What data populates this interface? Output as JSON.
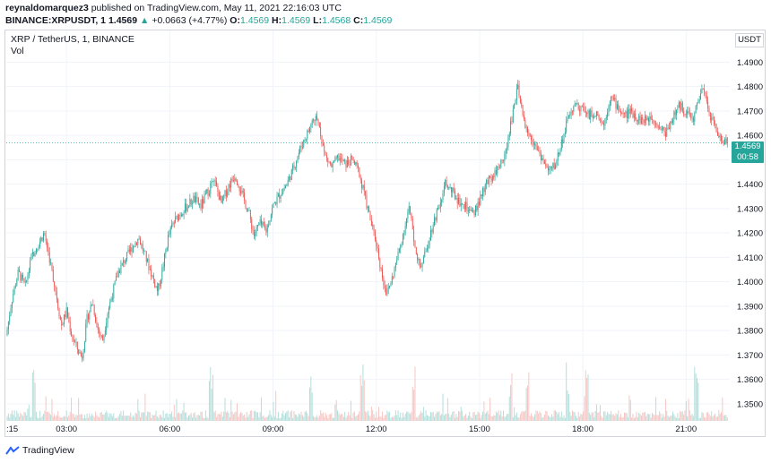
{
  "header": {
    "publisher": "reynaldomarquez3",
    "published_text": " published on TradingView.com, May 11, 2021 22:16:03 UTC",
    "symbol_line": "BINANCE:XRPUSDT, 1",
    "last": "1.4569",
    "arrow": "▲",
    "change": "+0.0663 (+4.77%)",
    "o_label": "O:",
    "o": "1.4569",
    "h_label": "H:",
    "h": "1.4569",
    "l_label": "L:",
    "l": "1.4568",
    "c_label": "C:",
    "c": "1.4569"
  },
  "legend": {
    "title": "XRP / TetherUS, 1, BINANCE",
    "vol": "Vol"
  },
  "currency": "USDT",
  "price_tag": {
    "price": "1.4569",
    "countdown": "00:58"
  },
  "footer": {
    "brand": "TradingView",
    "logo_icon": "tradingview-logo-icon"
  },
  "colors": {
    "up": "#26a69a",
    "down": "#ef5350",
    "vol_up": "#b2dfdb",
    "vol_down": "#f6c6c4",
    "grid": "#f0f3fa"
  },
  "chart_data": {
    "type": "candlestick",
    "title": "XRP / TetherUS, 1, BINANCE",
    "ylabel": "USDT",
    "ylim": [
      1.343,
      1.503
    ],
    "y_ticks": [
      "1.3500",
      "1.3600",
      "1.3700",
      "1.3800",
      "1.3900",
      "1.4000",
      "1.4100",
      "1.4200",
      "1.4300",
      "1.4400",
      "1.4500",
      "1.4600",
      "1.4700",
      "1.4800",
      "1.4900"
    ],
    "x_ticks": [
      ":15",
      "03:00",
      "06:00",
      "09:00",
      "12:00",
      "15:00",
      "18:00",
      "21:00"
    ],
    "x_range_hours": [
      1.25,
      22.27
    ],
    "current_price": 1.4569,
    "price_path": [
      [
        1.25,
        1.378
      ],
      [
        1.4,
        1.392
      ],
      [
        1.6,
        1.404
      ],
      [
        1.8,
        1.398
      ],
      [
        2.0,
        1.411
      ],
      [
        2.2,
        1.416
      ],
      [
        2.35,
        1.42
      ],
      [
        2.5,
        1.41
      ],
      [
        2.7,
        1.395
      ],
      [
        2.85,
        1.382
      ],
      [
        3.0,
        1.388
      ],
      [
        3.15,
        1.378
      ],
      [
        3.3,
        1.373
      ],
      [
        3.45,
        1.369
      ],
      [
        3.6,
        1.385
      ],
      [
        3.75,
        1.392
      ],
      [
        3.9,
        1.381
      ],
      [
        4.05,
        1.376
      ],
      [
        4.2,
        1.388
      ],
      [
        4.35,
        1.396
      ],
      [
        4.5,
        1.404
      ],
      [
        4.7,
        1.409
      ],
      [
        4.9,
        1.414
      ],
      [
        5.1,
        1.418
      ],
      [
        5.3,
        1.41
      ],
      [
        5.5,
        1.402
      ],
      [
        5.65,
        1.396
      ],
      [
        5.8,
        1.406
      ],
      [
        5.95,
        1.418
      ],
      [
        6.1,
        1.424
      ],
      [
        6.3,
        1.428
      ],
      [
        6.5,
        1.431
      ],
      [
        6.7,
        1.434
      ],
      [
        6.9,
        1.431
      ],
      [
        7.1,
        1.437
      ],
      [
        7.3,
        1.441
      ],
      [
        7.5,
        1.432
      ],
      [
        7.7,
        1.439
      ],
      [
        7.9,
        1.444
      ],
      [
        8.1,
        1.436
      ],
      [
        8.3,
        1.428
      ],
      [
        8.45,
        1.419
      ],
      [
        8.6,
        1.424
      ],
      [
        8.8,
        1.421
      ],
      [
        9.0,
        1.431
      ],
      [
        9.2,
        1.436
      ],
      [
        9.4,
        1.44
      ],
      [
        9.6,
        1.447
      ],
      [
        9.8,
        1.455
      ],
      [
        10.0,
        1.461
      ],
      [
        10.2,
        1.467
      ],
      [
        10.35,
        1.464
      ],
      [
        10.5,
        1.452
      ],
      [
        10.7,
        1.447
      ],
      [
        10.9,
        1.451
      ],
      [
        11.1,
        1.448
      ],
      [
        11.3,
        1.45
      ],
      [
        11.5,
        1.445
      ],
      [
        11.7,
        1.433
      ],
      [
        11.85,
        1.424
      ],
      [
        12.0,
        1.416
      ],
      [
        12.15,
        1.404
      ],
      [
        12.3,
        1.395
      ],
      [
        12.45,
        1.401
      ],
      [
        12.6,
        1.409
      ],
      [
        12.8,
        1.421
      ],
      [
        12.95,
        1.43
      ],
      [
        13.1,
        1.418
      ],
      [
        13.25,
        1.406
      ],
      [
        13.4,
        1.41
      ],
      [
        13.55,
        1.419
      ],
      [
        13.7,
        1.426
      ],
      [
        13.85,
        1.433
      ],
      [
        14.0,
        1.44
      ],
      [
        14.2,
        1.437
      ],
      [
        14.4,
        1.433
      ],
      [
        14.6,
        1.431
      ],
      [
        14.8,
        1.427
      ],
      [
        15.0,
        1.433
      ],
      [
        15.2,
        1.44
      ],
      [
        15.4,
        1.444
      ],
      [
        15.6,
        1.448
      ],
      [
        15.8,
        1.455
      ],
      [
        15.95,
        1.468
      ],
      [
        16.1,
        1.48
      ],
      [
        16.25,
        1.468
      ],
      [
        16.4,
        1.462
      ],
      [
        16.6,
        1.457
      ],
      [
        16.8,
        1.451
      ],
      [
        17.0,
        1.445
      ],
      [
        17.2,
        1.448
      ],
      [
        17.4,
        1.458
      ],
      [
        17.6,
        1.468
      ],
      [
        17.8,
        1.473
      ],
      [
        18.0,
        1.471
      ],
      [
        18.2,
        1.468
      ],
      [
        18.4,
        1.47
      ],
      [
        18.6,
        1.464
      ],
      [
        18.8,
        1.476
      ],
      [
        19.0,
        1.472
      ],
      [
        19.2,
        1.468
      ],
      [
        19.4,
        1.47
      ],
      [
        19.6,
        1.467
      ],
      [
        19.8,
        1.466
      ],
      [
        20.0,
        1.468
      ],
      [
        20.2,
        1.464
      ],
      [
        20.4,
        1.461
      ],
      [
        20.6,
        1.467
      ],
      [
        20.8,
        1.472
      ],
      [
        21.0,
        1.47
      ],
      [
        21.2,
        1.466
      ],
      [
        21.35,
        1.474
      ],
      [
        21.5,
        1.479
      ],
      [
        21.65,
        1.47
      ],
      [
        21.8,
        1.465
      ],
      [
        21.95,
        1.46
      ],
      [
        22.1,
        1.458
      ],
      [
        22.27,
        1.457
      ]
    ],
    "volume_spikes_hours": [
      2.05,
      7.2,
      10.1,
      11.6,
      13.1,
      15.9,
      16.4,
      17.55,
      18.1,
      21.3
    ]
  }
}
